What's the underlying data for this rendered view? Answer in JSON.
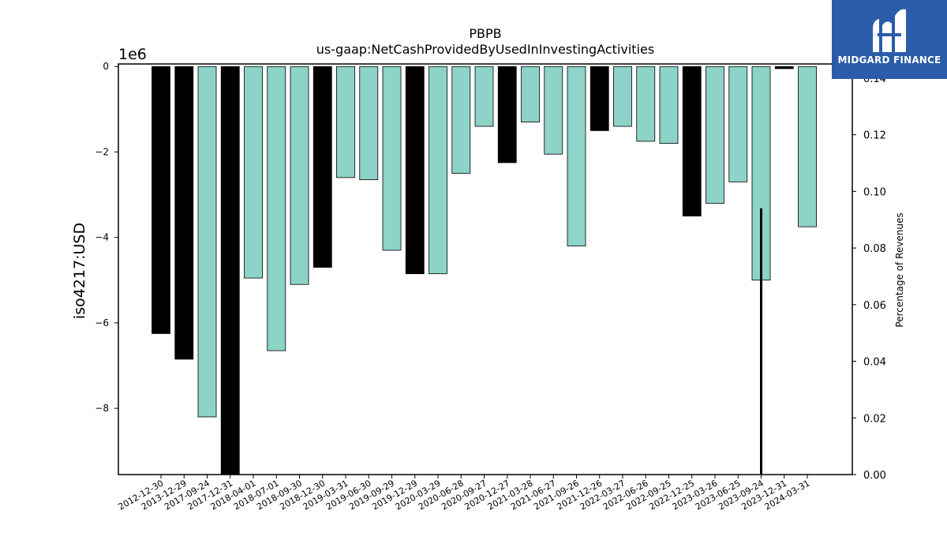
{
  "chart_data": {
    "type": "bar",
    "title": "PBPB",
    "subtitle": "us-gaap:NetCashProvidedByUsedInInvestingActivities",
    "ylabel": "iso4217:USD",
    "y_multiplier": "1e6",
    "y2label": "Percentage of Revenues",
    "ylim": [
      -9550000,
      60000
    ],
    "y2lim": [
      0,
      0.145
    ],
    "yticks": [
      0,
      -2000000,
      -4000000,
      -6000000,
      -8000000
    ],
    "ytick_labels": [
      "0",
      "−2",
      "−4",
      "−6",
      "−8"
    ],
    "y2ticks": [
      0.0,
      0.02,
      0.04,
      0.06,
      0.08,
      0.1,
      0.12,
      0.14
    ],
    "y2tick_labels": [
      "0.00",
      "0.02",
      "0.04",
      "0.06",
      "0.08",
      "0.10",
      "0.12",
      "0.14"
    ],
    "categories": [
      "2012-12-30",
      "2013-12-29",
      "2017-09-24",
      "2017-12-31",
      "2018-04-01",
      "2018-07-01",
      "2018-09-30",
      "2018-12-30",
      "2019-03-31",
      "2019-06-30",
      "2019-09-29",
      "2019-12-29",
      "2020-03-29",
      "2020-06-28",
      "2020-09-27",
      "2020-12-27",
      "2021-03-28",
      "2021-06-27",
      "2021-09-26",
      "2021-12-26",
      "2022-03-27",
      "2022-06-26",
      "2022-09-25",
      "2022-12-25",
      "2023-03-26",
      "2023-06-25",
      "2023-09-24",
      "2023-12-31",
      "2024-03-31"
    ],
    "values": [
      -6250000,
      -6850000,
      -8200000,
      -9600000,
      -4950000,
      -6650000,
      -5100000,
      -4700000,
      -2600000,
      -2650000,
      -4300000,
      -4850000,
      -4850000,
      -2500000,
      -1400000,
      -2250000,
      -1300000,
      -2050000,
      -4200000,
      -1500000,
      -1400000,
      -1750000,
      -1800000,
      -3500000,
      -3200000,
      -2700000,
      -5000000,
      -50000,
      -3750000
    ],
    "annual": [
      true,
      true,
      false,
      true,
      false,
      false,
      false,
      true,
      false,
      false,
      false,
      true,
      false,
      false,
      false,
      true,
      false,
      false,
      false,
      true,
      false,
      false,
      false,
      true,
      false,
      false,
      false,
      true,
      false
    ],
    "series": [
      {
        "name": "",
        "values_pct": [
          null,
          null,
          null,
          null,
          null,
          null,
          null,
          null,
          null,
          null,
          null,
          null,
          null,
          null,
          null,
          null,
          null,
          null,
          null,
          null,
          null,
          null,
          null,
          null,
          null,
          null,
          0.094,
          null,
          null
        ]
      }
    ],
    "colors": {
      "annual": "#000000",
      "quarterly": "#8dd3c7",
      "edge": "#000000",
      "pct_line": "#000000"
    },
    "grid": false
  },
  "logo": {
    "text": "MIDGARD FINANCE",
    "background": "#2a5caa"
  }
}
